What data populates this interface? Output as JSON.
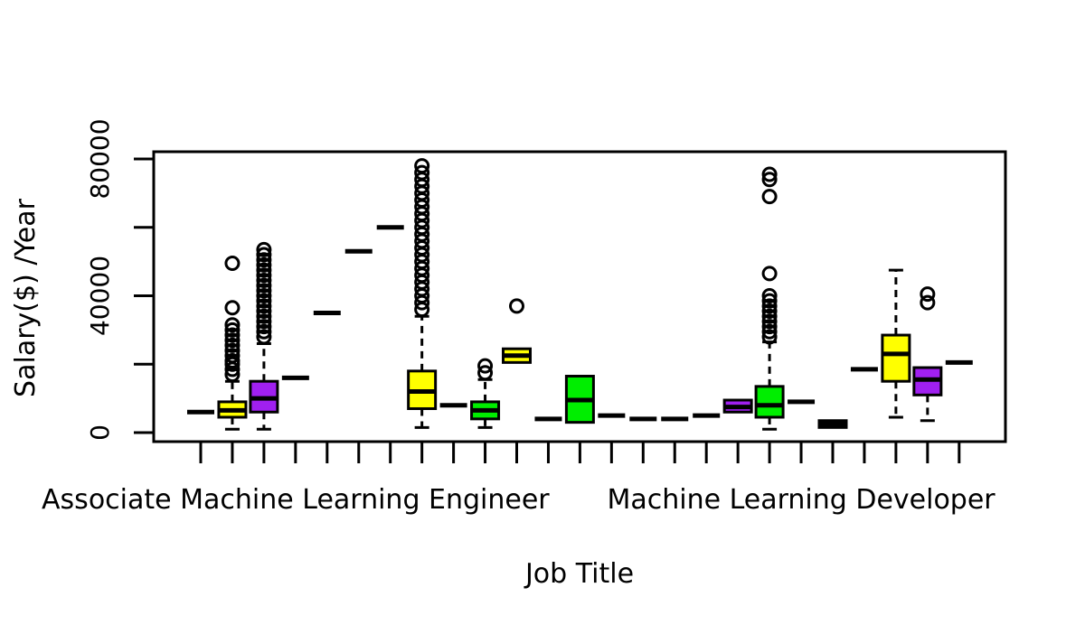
{
  "chart_data": {
    "type": "box",
    "title": "",
    "xlabel": "Job Title",
    "ylabel": "Salary($) /Year",
    "ylim": [
      -2000,
      82000
    ],
    "y_ticks": [
      0,
      40000,
      80000
    ],
    "y_tick_labels": [
      "0",
      "40000",
      "80000"
    ],
    "visible_category_labels": [
      {
        "label": "Associate Machine Learning Engineer",
        "box_index": 3
      },
      {
        "label": "Machine Learning Developer",
        "box_index": 19
      }
    ],
    "colors": {
      "yellow": "#ffff00",
      "purple": "#a020f0",
      "green": "#00ee00",
      "white": "#ffffff"
    },
    "boxes": [
      {
        "color": "white",
        "q1": 6000,
        "median": 6000,
        "q3": 6000,
        "lo": 6000,
        "hi": 6000,
        "outliers": []
      },
      {
        "color": "yellow",
        "q1": 4500,
        "median": 6500,
        "q3": 9000,
        "lo": 1000,
        "hi": 15000,
        "outliers": [
          17000,
          18500,
          20000,
          21000,
          22500,
          24000,
          25500,
          27000,
          28500,
          30000,
          31500,
          36500,
          49500
        ]
      },
      {
        "color": "purple",
        "q1": 6000,
        "median": 10000,
        "q3": 15000,
        "lo": 1000,
        "hi": 26000,
        "outliers": [
          28000,
          29500,
          31000,
          32500,
          34000,
          35500,
          37000,
          38500,
          40000,
          41500,
          43000,
          44500,
          46000,
          47500,
          49000,
          50500,
          52000,
          53500
        ]
      },
      {
        "color": "white",
        "q1": 16000,
        "median": 16000,
        "q3": 16000,
        "lo": 16000,
        "hi": 16000,
        "outliers": []
      },
      {
        "color": "white",
        "q1": 35000,
        "median": 35000,
        "q3": 35000,
        "lo": 35000,
        "hi": 35000,
        "outliers": []
      },
      {
        "color": "white",
        "q1": 53000,
        "median": 53000,
        "q3": 53000,
        "lo": 53000,
        "hi": 53000,
        "outliers": []
      },
      {
        "color": "white",
        "q1": 60000,
        "median": 60000,
        "q3": 60000,
        "lo": 60000,
        "hi": 60000,
        "outliers": []
      },
      {
        "color": "yellow",
        "q1": 7000,
        "median": 12000,
        "q3": 18000,
        "lo": 1500,
        "hi": 34000,
        "outliers": [
          36000,
          38000,
          40000,
          42000,
          44000,
          46000,
          48000,
          50000,
          52000,
          54000,
          56000,
          58000,
          60000,
          62000,
          64000,
          66000,
          68000,
          70000,
          72000,
          74000,
          76000,
          78000
        ]
      },
      {
        "color": "white",
        "q1": 8000,
        "median": 8000,
        "q3": 8000,
        "lo": 8000,
        "hi": 8000,
        "outliers": []
      },
      {
        "color": "green",
        "q1": 4000,
        "median": 6500,
        "q3": 9000,
        "lo": 1500,
        "hi": 15500,
        "outliers": [
          17500,
          19500
        ]
      },
      {
        "color": "yellow",
        "q1": 20500,
        "median": 22500,
        "q3": 24500,
        "lo": 20500,
        "hi": 24500,
        "outliers": [
          37000
        ]
      },
      {
        "color": "white",
        "q1": 4000,
        "median": 4000,
        "q3": 4000,
        "lo": 4000,
        "hi": 4000,
        "outliers": []
      },
      {
        "color": "green",
        "q1": 3000,
        "median": 9500,
        "q3": 16500,
        "lo": 3000,
        "hi": 16500,
        "outliers": []
      },
      {
        "color": "white",
        "q1": 5000,
        "median": 5000,
        "q3": 5000,
        "lo": 5000,
        "hi": 5000,
        "outliers": []
      },
      {
        "color": "white",
        "q1": 4000,
        "median": 4000,
        "q3": 4000,
        "lo": 4000,
        "hi": 4000,
        "outliers": []
      },
      {
        "color": "white",
        "q1": 4000,
        "median": 4000,
        "q3": 4000,
        "lo": 4000,
        "hi": 4000,
        "outliers": []
      },
      {
        "color": "white",
        "q1": 5000,
        "median": 5000,
        "q3": 5000,
        "lo": 5000,
        "hi": 5000,
        "outliers": []
      },
      {
        "color": "purple",
        "q1": 6000,
        "median": 7500,
        "q3": 9500,
        "lo": 6000,
        "hi": 9500,
        "outliers": []
      },
      {
        "color": "green",
        "q1": 4500,
        "median": 8000,
        "q3": 13500,
        "lo": 1000,
        "hi": 26500,
        "outliers": [
          28000,
          29500,
          31000,
          32500,
          34000,
          35500,
          37000,
          38500,
          40000,
          46500,
          69000,
          74000,
          75500
        ]
      },
      {
        "color": "white",
        "q1": 9000,
        "median": 9000,
        "q3": 9000,
        "lo": 9000,
        "hi": 9000,
        "outliers": []
      },
      {
        "color": "white",
        "q1": 1500,
        "median": 2500,
        "q3": 3500,
        "lo": 1500,
        "hi": 3500,
        "outliers": []
      },
      {
        "color": "white",
        "q1": 18500,
        "median": 18500,
        "q3": 18500,
        "lo": 18500,
        "hi": 18500,
        "outliers": []
      },
      {
        "color": "yellow",
        "q1": 15000,
        "median": 23000,
        "q3": 28500,
        "lo": 4500,
        "hi": 47500,
        "outliers": []
      },
      {
        "color": "purple",
        "q1": 11000,
        "median": 15500,
        "q3": 19000,
        "lo": 3500,
        "hi": 19000,
        "outliers": [
          38000,
          40500
        ]
      },
      {
        "color": "white",
        "q1": 20500,
        "median": 20500,
        "q3": 20500,
        "lo": 20500,
        "hi": 20500,
        "outliers": []
      }
    ]
  }
}
